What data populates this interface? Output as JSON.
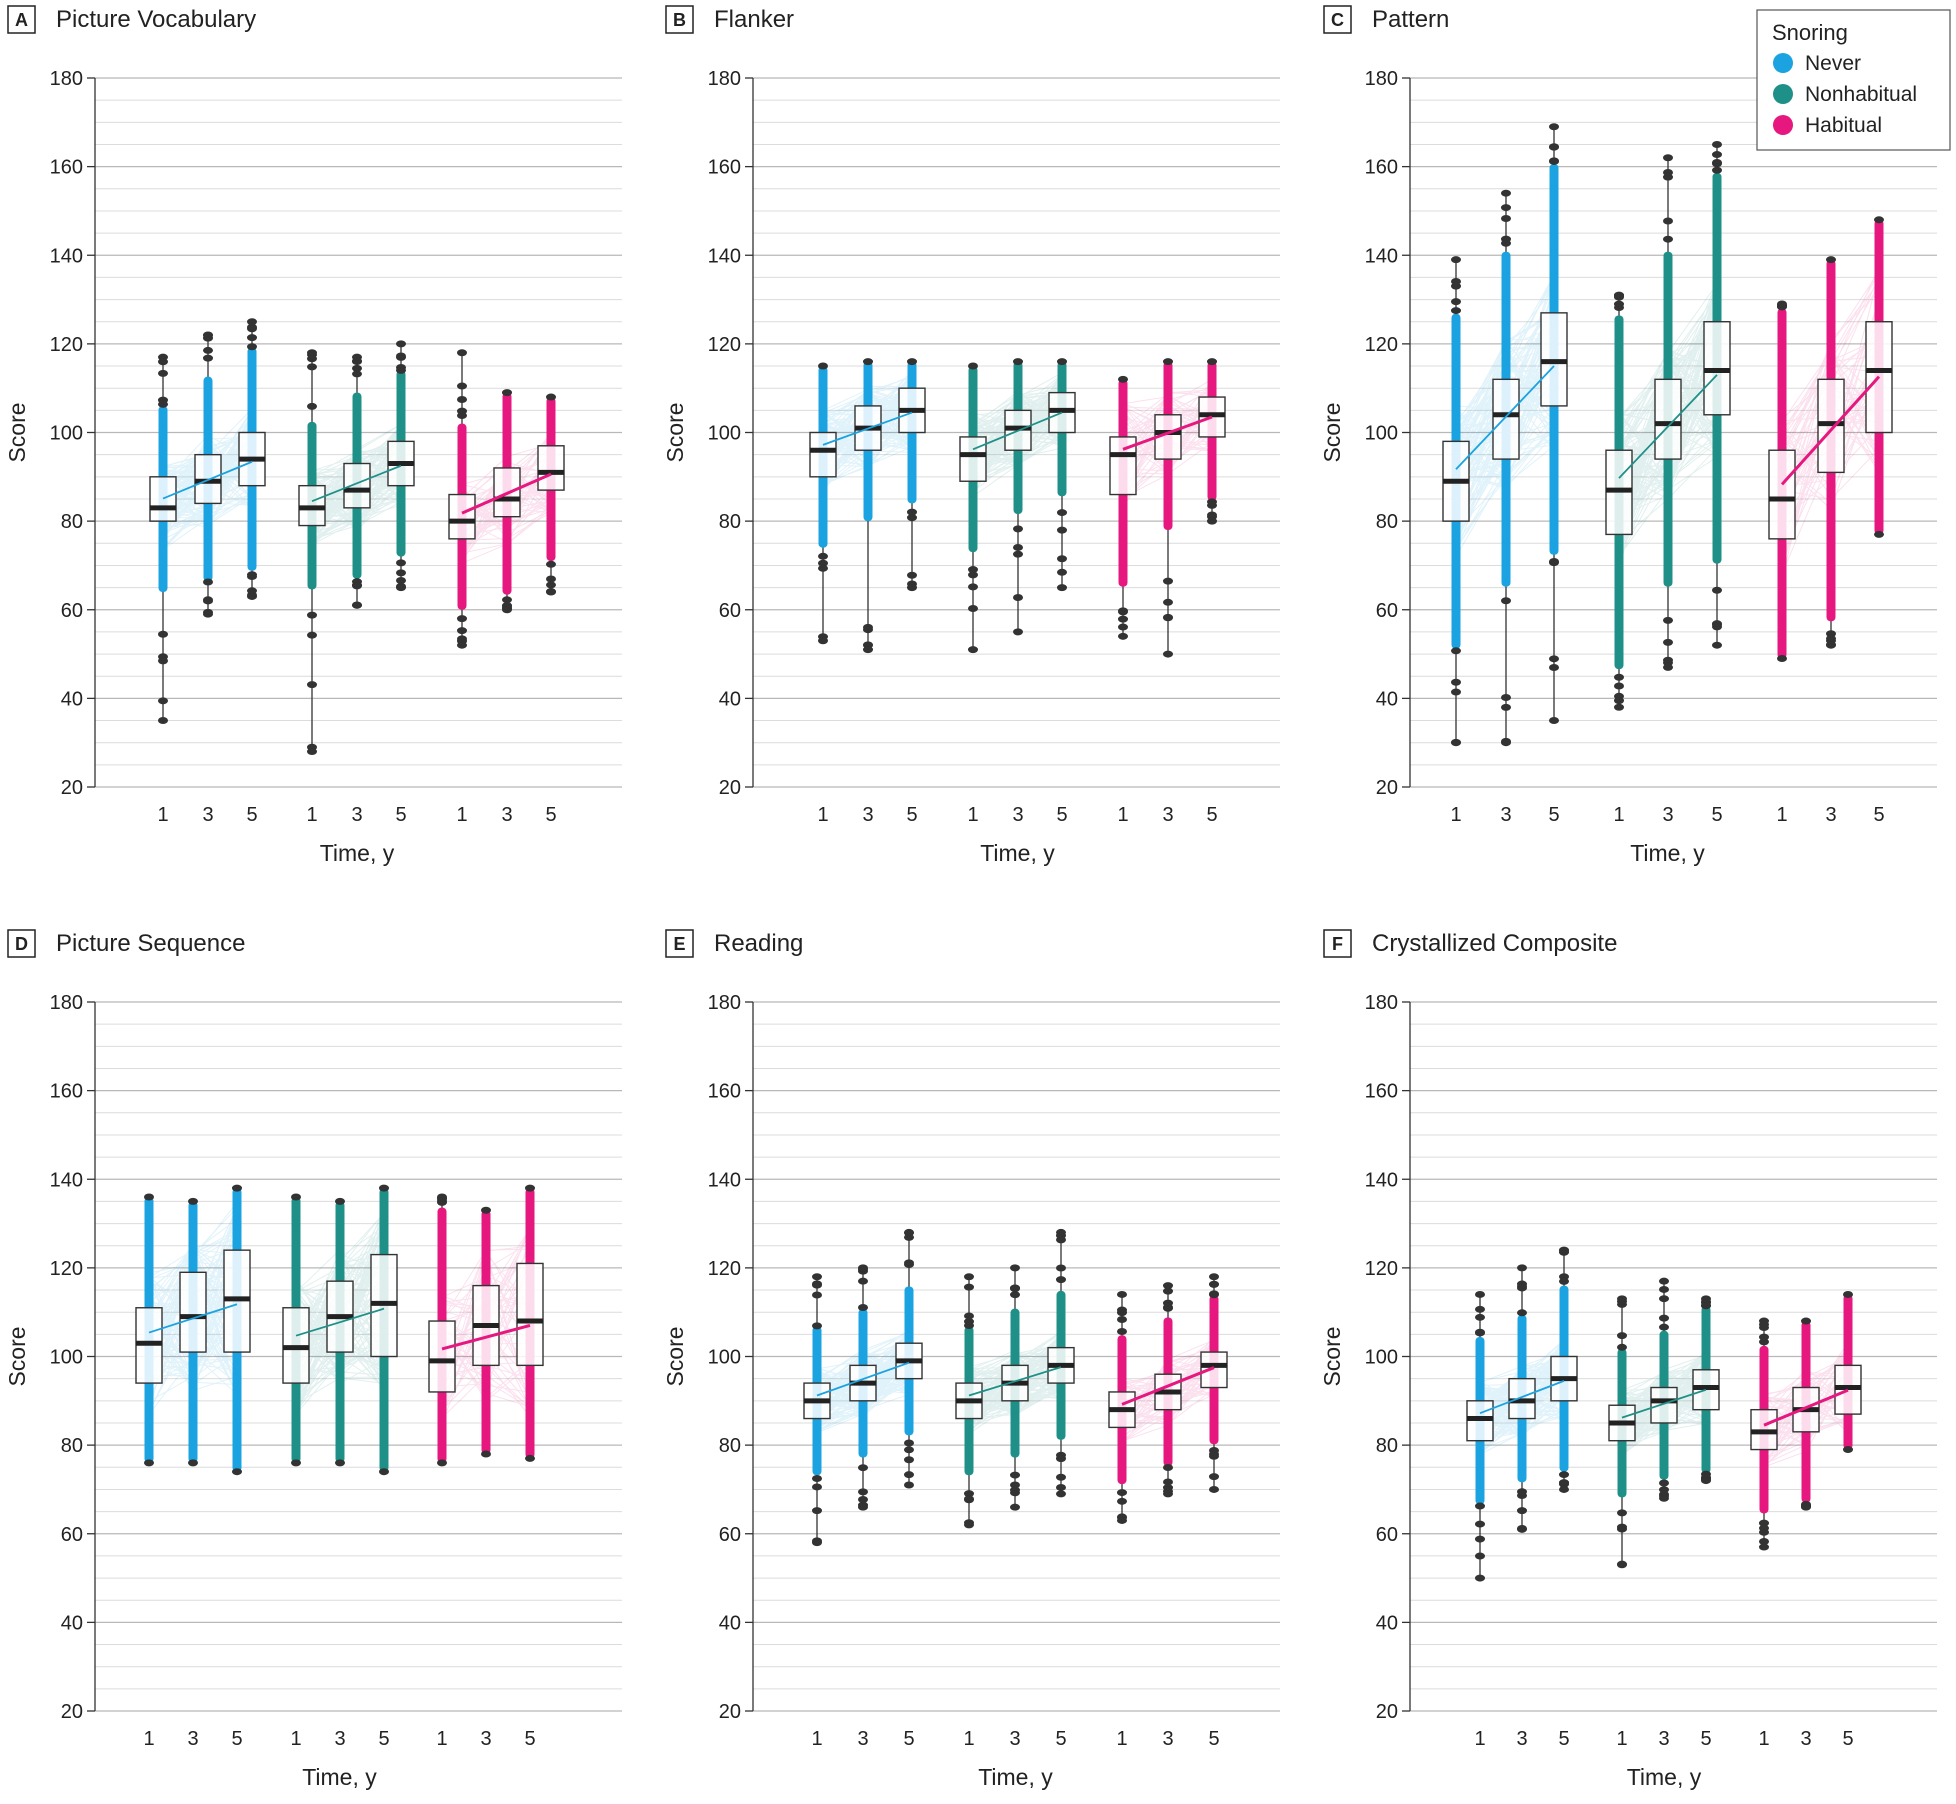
{
  "colors": {
    "never": "#1aa3e0",
    "nonhabitual": "#1f9088",
    "habitual": "#e6187f",
    "grid": "#c9c9c9",
    "outlier": "#333333",
    "text": "#222222"
  },
  "legend": {
    "title": "Snoring",
    "items": [
      {
        "key": "never",
        "label": "Never"
      },
      {
        "key": "nonhabitual",
        "label": "Nonhabitual"
      },
      {
        "key": "habitual",
        "label": "Habitual"
      }
    ]
  },
  "chart_data": [
    {
      "letter": "A",
      "title": "Picture Vocabulary",
      "type": "box",
      "xlabel": "Time, y",
      "ylabel": "Score",
      "ylim": [
        20,
        180
      ],
      "yticks": [
        20,
        40,
        60,
        80,
        100,
        120,
        140,
        160,
        180
      ],
      "time_labels": [
        "1",
        "3",
        "5"
      ],
      "groups": [
        {
          "key": "never",
          "boxes": [
            {
              "time": "1",
              "min": 35,
              "q1": 80,
              "median": 83,
              "q3": 90,
              "max": 117
            },
            {
              "time": "3",
              "min": 59,
              "q1": 84,
              "median": 89,
              "q3": 95,
              "max": 122
            },
            {
              "time": "5",
              "min": 63,
              "q1": 88,
              "median": 94,
              "q3": 100,
              "max": 125
            }
          ]
        },
        {
          "key": "nonhabitual",
          "boxes": [
            {
              "time": "1",
              "min": 28,
              "q1": 79,
              "median": 83,
              "q3": 88,
              "max": 118
            },
            {
              "time": "3",
              "min": 61,
              "q1": 83,
              "median": 87,
              "q3": 93,
              "max": 117
            },
            {
              "time": "5",
              "min": 65,
              "q1": 88,
              "median": 93,
              "q3": 98,
              "max": 120
            }
          ]
        },
        {
          "key": "habitual",
          "boxes": [
            {
              "time": "1",
              "min": 52,
              "q1": 76,
              "median": 80,
              "q3": 86,
              "max": 118
            },
            {
              "time": "3",
              "min": 60,
              "q1": 81,
              "median": 85,
              "q3": 92,
              "max": 109
            },
            {
              "time": "5",
              "min": 64,
              "q1": 87,
              "median": 91,
              "q3": 97,
              "max": 108
            }
          ]
        }
      ]
    },
    {
      "letter": "B",
      "title": "Flanker",
      "type": "box",
      "xlabel": "Time, y",
      "ylabel": "Score",
      "ylim": [
        20,
        180
      ],
      "yticks": [
        20,
        40,
        60,
        80,
        100,
        120,
        140,
        160,
        180
      ],
      "time_labels": [
        "1",
        "3",
        "5"
      ],
      "groups": [
        {
          "key": "never",
          "boxes": [
            {
              "time": "1",
              "min": 53,
              "q1": 90,
              "median": 96,
              "q3": 100,
              "max": 115
            },
            {
              "time": "3",
              "min": 51,
              "q1": 96,
              "median": 101,
              "q3": 106,
              "max": 116
            },
            {
              "time": "5",
              "min": 65,
              "q1": 100,
              "median": 105,
              "q3": 110,
              "max": 116
            }
          ]
        },
        {
          "key": "nonhabitual",
          "boxes": [
            {
              "time": "1",
              "min": 51,
              "q1": 89,
              "median": 95,
              "q3": 99,
              "max": 115
            },
            {
              "time": "3",
              "min": 55,
              "q1": 96,
              "median": 101,
              "q3": 105,
              "max": 116
            },
            {
              "time": "5",
              "min": 65,
              "q1": 100,
              "median": 105,
              "q3": 109,
              "max": 116
            }
          ]
        },
        {
          "key": "habitual",
          "boxes": [
            {
              "time": "1",
              "min": 54,
              "q1": 86,
              "median": 95,
              "q3": 99,
              "max": 112
            },
            {
              "time": "3",
              "min": 50,
              "q1": 94,
              "median": 100,
              "q3": 104,
              "max": 116
            },
            {
              "time": "5",
              "min": 80,
              "q1": 99,
              "median": 104,
              "q3": 108,
              "max": 116
            }
          ]
        }
      ]
    },
    {
      "letter": "C",
      "title": "Pattern",
      "type": "box",
      "xlabel": "Time, y",
      "ylabel": "Score",
      "ylim": [
        20,
        180
      ],
      "yticks": [
        20,
        40,
        60,
        80,
        100,
        120,
        140,
        160,
        180
      ],
      "time_labels": [
        "1",
        "3",
        "5"
      ],
      "groups": [
        {
          "key": "never",
          "boxes": [
            {
              "time": "1",
              "min": 30,
              "q1": 80,
              "median": 89,
              "q3": 98,
              "max": 139
            },
            {
              "time": "3",
              "min": 30,
              "q1": 94,
              "median": 104,
              "q3": 112,
              "max": 154
            },
            {
              "time": "5",
              "min": 35,
              "q1": 106,
              "median": 116,
              "q3": 127,
              "max": 169
            }
          ]
        },
        {
          "key": "nonhabitual",
          "boxes": [
            {
              "time": "1",
              "min": 38,
              "q1": 77,
              "median": 87,
              "q3": 96,
              "max": 131
            },
            {
              "time": "3",
              "min": 47,
              "q1": 94,
              "median": 102,
              "q3": 112,
              "max": 162
            },
            {
              "time": "5",
              "min": 52,
              "q1": 104,
              "median": 114,
              "q3": 125,
              "max": 165
            }
          ]
        },
        {
          "key": "habitual",
          "boxes": [
            {
              "time": "1",
              "min": 49,
              "q1": 76,
              "median": 85,
              "q3": 96,
              "max": 129
            },
            {
              "time": "3",
              "min": 52,
              "q1": 91,
              "median": 102,
              "q3": 112,
              "max": 139
            },
            {
              "time": "5",
              "min": 77,
              "q1": 100,
              "median": 114,
              "q3": 125,
              "max": 148
            }
          ]
        }
      ]
    },
    {
      "letter": "D",
      "title": "Picture Sequence",
      "type": "box",
      "xlabel": "Time, y",
      "ylabel": "Score",
      "ylim": [
        20,
        180
      ],
      "yticks": [
        20,
        40,
        60,
        80,
        100,
        120,
        140,
        160,
        180
      ],
      "time_labels": [
        "1",
        "3",
        "5"
      ],
      "groups": [
        {
          "key": "never",
          "boxes": [
            {
              "time": "1",
              "min": 76,
              "q1": 94,
              "median": 103,
              "q3": 111,
              "max": 136
            },
            {
              "time": "3",
              "min": 76,
              "q1": 101,
              "median": 109,
              "q3": 119,
              "max": 135
            },
            {
              "time": "5",
              "min": 74,
              "q1": 101,
              "median": 113,
              "q3": 124,
              "max": 138
            }
          ]
        },
        {
          "key": "nonhabitual",
          "boxes": [
            {
              "time": "1",
              "min": 76,
              "q1": 94,
              "median": 102,
              "q3": 111,
              "max": 136
            },
            {
              "time": "3",
              "min": 76,
              "q1": 101,
              "median": 109,
              "q3": 117,
              "max": 135
            },
            {
              "time": "5",
              "min": 74,
              "q1": 100,
              "median": 112,
              "q3": 123,
              "max": 138
            }
          ]
        },
        {
          "key": "habitual",
          "boxes": [
            {
              "time": "1",
              "min": 76,
              "q1": 92,
              "median": 99,
              "q3": 108,
              "max": 136
            },
            {
              "time": "3",
              "min": 78,
              "q1": 98,
              "median": 107,
              "q3": 116,
              "max": 133
            },
            {
              "time": "5",
              "min": 77,
              "q1": 98,
              "median": 108,
              "q3": 121,
              "max": 138
            }
          ]
        }
      ]
    },
    {
      "letter": "E",
      "title": "Reading",
      "type": "box",
      "xlabel": "Time, y",
      "ylabel": "Score",
      "ylim": [
        20,
        180
      ],
      "yticks": [
        20,
        40,
        60,
        80,
        100,
        120,
        140,
        160,
        180
      ],
      "time_labels": [
        "1",
        "3",
        "5"
      ],
      "groups": [
        {
          "key": "never",
          "boxes": [
            {
              "time": "1",
              "min": 58,
              "q1": 86,
              "median": 90,
              "q3": 94,
              "max": 118
            },
            {
              "time": "3",
              "min": 66,
              "q1": 90,
              "median": 94,
              "q3": 98,
              "max": 120
            },
            {
              "time": "5",
              "min": 71,
              "q1": 95,
              "median": 99,
              "q3": 103,
              "max": 128
            }
          ]
        },
        {
          "key": "nonhabitual",
          "boxes": [
            {
              "time": "1",
              "min": 62,
              "q1": 86,
              "median": 90,
              "q3": 94,
              "max": 118
            },
            {
              "time": "3",
              "min": 66,
              "q1": 90,
              "median": 94,
              "q3": 98,
              "max": 120
            },
            {
              "time": "5",
              "min": 69,
              "q1": 94,
              "median": 98,
              "q3": 102,
              "max": 128
            }
          ]
        },
        {
          "key": "habitual",
          "boxes": [
            {
              "time": "1",
              "min": 63,
              "q1": 84,
              "median": 88,
              "q3": 92,
              "max": 114
            },
            {
              "time": "3",
              "min": 69,
              "q1": 88,
              "median": 92,
              "q3": 96,
              "max": 116
            },
            {
              "time": "5",
              "min": 70,
              "q1": 93,
              "median": 98,
              "q3": 101,
              "max": 118
            }
          ]
        }
      ]
    },
    {
      "letter": "F",
      "title": "Crystallized Composite",
      "type": "box",
      "xlabel": "Time, y",
      "ylabel": "Score",
      "ylim": [
        20,
        180
      ],
      "yticks": [
        20,
        40,
        60,
        80,
        100,
        120,
        140,
        160,
        180
      ],
      "time_labels": [
        "1",
        "3",
        "5"
      ],
      "groups": [
        {
          "key": "never",
          "boxes": [
            {
              "time": "1",
              "min": 50,
              "q1": 81,
              "median": 86,
              "q3": 90,
              "max": 114
            },
            {
              "time": "3",
              "min": 61,
              "q1": 86,
              "median": 90,
              "q3": 95,
              "max": 120
            },
            {
              "time": "5",
              "min": 70,
              "q1": 90,
              "median": 95,
              "q3": 100,
              "max": 124
            }
          ]
        },
        {
          "key": "nonhabitual",
          "boxes": [
            {
              "time": "1",
              "min": 53,
              "q1": 81,
              "median": 85,
              "q3": 89,
              "max": 113
            },
            {
              "time": "3",
              "min": 68,
              "q1": 85,
              "median": 90,
              "q3": 93,
              "max": 117
            },
            {
              "time": "5",
              "min": 72,
              "q1": 88,
              "median": 93,
              "q3": 97,
              "max": 113
            }
          ]
        },
        {
          "key": "habitual",
          "boxes": [
            {
              "time": "1",
              "min": 57,
              "q1": 79,
              "median": 83,
              "q3": 88,
              "max": 108
            },
            {
              "time": "3",
              "min": 66,
              "q1": 83,
              "median": 88,
              "q3": 93,
              "max": 108
            },
            {
              "time": "5",
              "min": 79,
              "q1": 87,
              "median": 93,
              "q3": 98,
              "max": 114
            }
          ]
        }
      ]
    }
  ]
}
